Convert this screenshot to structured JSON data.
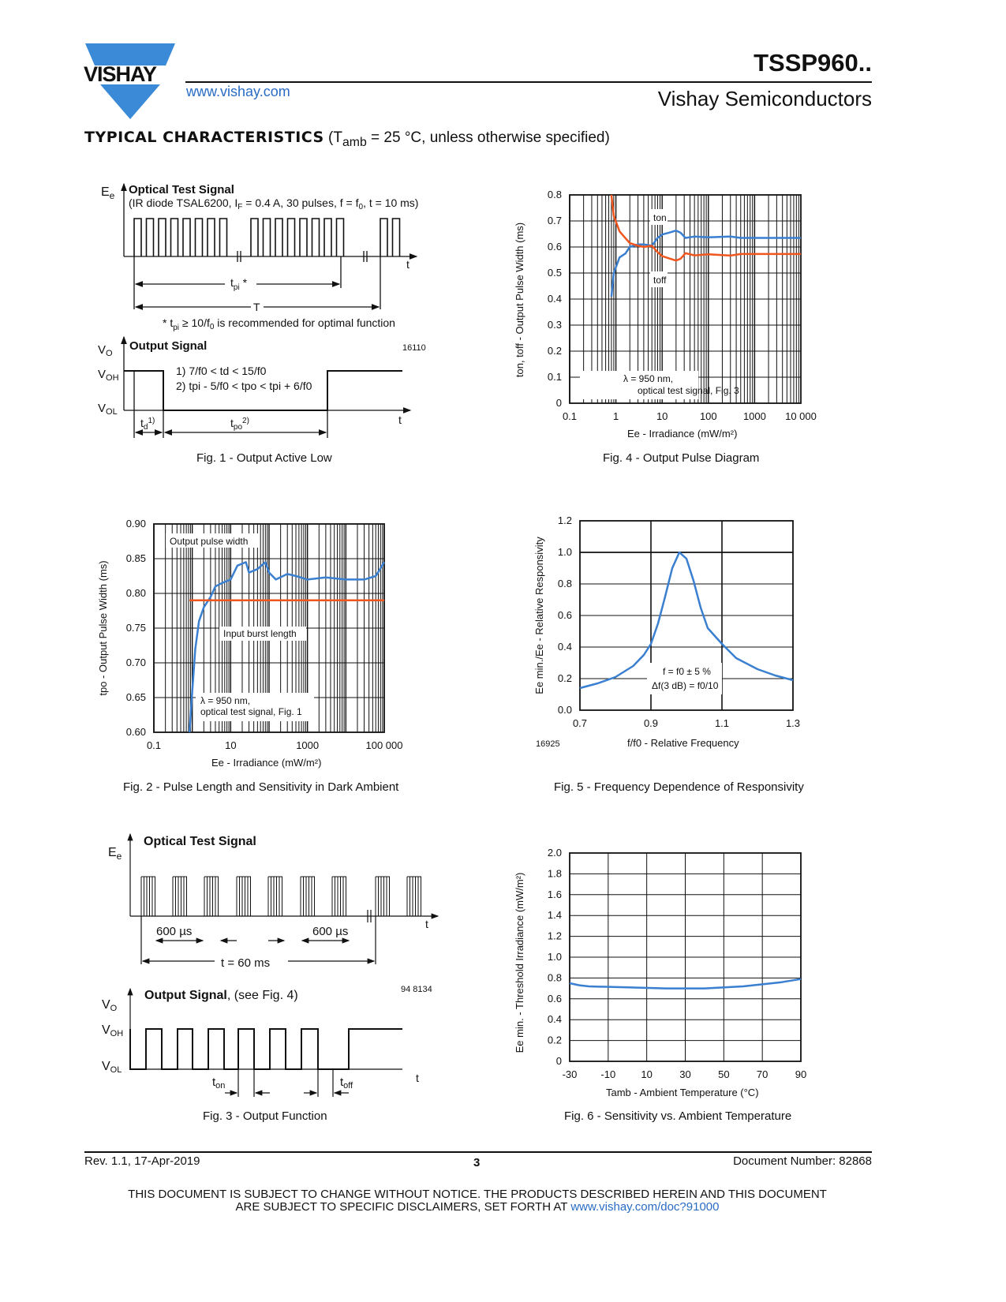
{
  "header": {
    "logo_text": "VISHAY",
    "part_number": "TSSP960..",
    "url": "www.vishay.com",
    "company": "Vishay Semiconductors"
  },
  "section": {
    "title": "TYPICAL CHARACTERISTICS",
    "condition_pre": "(T",
    "condition_sub": "amb",
    "condition_post": " = 25 °C, unless otherwise specified)"
  },
  "fig1": {
    "ee": "E",
    "ee_sub": "e",
    "optical_title": "Optical Test Signal",
    "optical_desc": "(IR diode TSAL6200, I",
    "optical_desc_sub": "F",
    "optical_desc2": " = 0.4 A, 30 pulses, f =  f",
    "optical_desc2_sub": "0",
    "optical_desc3": ", t = 10 ms)",
    "t": "t",
    "tpi": "t",
    "tpi_sub": "pi",
    "tpi_star": " *",
    "T": "T",
    "note": "* t",
    "note_sub": "pi",
    "note2": " ≥ 10/f",
    "note2_sub": "0",
    "note3": " is recommended for optimal function",
    "vo": "V",
    "vo_sub": "O",
    "output_title": "Output Signal",
    "code": "16110",
    "voh": "V",
    "voh_sub": "OH",
    "vol": "V",
    "vol_sub": "OL",
    "cond1": "1) 7/f0 < td < 15/f0",
    "cond2": "2) tpi - 5/f0 < tpo < tpi + 6/f0",
    "td": "t",
    "td_sub": "d",
    "td_sup": "1)",
    "tpo": "t",
    "tpo_sub": "po",
    "tpo_sup": "2)",
    "caption": "Fig. 1 - Output Active Low"
  },
  "fig3": {
    "ee": "E",
    "ee_sub": "e",
    "optical_title": "Optical Test Signal",
    "dur1": "600 µs",
    "dur2": "600 µs",
    "period": "t = 60 ms",
    "t": "t",
    "code": "94 8134",
    "output_title": "Output Signal",
    "output_ref": ", (see Fig. 4)",
    "vo": "V",
    "vo_sub": "O",
    "voh": "V",
    "voh_sub": "OH",
    "vol": "V",
    "vol_sub": "OL",
    "ton": "t",
    "ton_sub": "on",
    "toff": "t",
    "toff_sub": "off",
    "caption": "Fig. 3 - Output Function"
  },
  "chart_data": [
    {
      "id": "fig4",
      "type": "line",
      "title": "Fig. 4 - Output Pulse Diagram",
      "xlabel": "Ee - Irradiance (mW/m²)",
      "ylabel": "ton, toff - Output Pulse Width (ms)",
      "xscale": "log",
      "xlim": [
        0.1,
        10000
      ],
      "ylim": [
        0,
        0.8
      ],
      "xticks": [
        "0.1",
        "1",
        "10",
        "100",
        "1000",
        "10 000"
      ],
      "yticks": [
        "0",
        "0.1",
        "0.2",
        "0.3",
        "0.4",
        "0.5",
        "0.6",
        "0.7",
        "0.8"
      ],
      "annotation": [
        "λ = 950 nm,",
        "optical test signal, Fig. 3"
      ],
      "series": [
        {
          "name": "ton",
          "color": "#3a7fd0",
          "label": "on",
          "x": [
            0.8,
            0.9,
            1.2,
            1.6,
            2,
            3,
            4,
            6,
            8,
            10,
            14,
            20,
            25,
            32,
            50,
            100,
            300,
            500,
            5000,
            10000
          ],
          "y": [
            0.41,
            0.5,
            0.56,
            0.575,
            0.6,
            0.61,
            0.61,
            0.605,
            0.635,
            0.648,
            0.655,
            0.663,
            0.655,
            0.635,
            0.64,
            0.637,
            0.64,
            0.635,
            0.635,
            0.635
          ]
        },
        {
          "name": "toff",
          "color": "#f0561e",
          "label": "off",
          "x": [
            0.8,
            0.9,
            1.2,
            1.5,
            2,
            3,
            4,
            6,
            8,
            10,
            15,
            20,
            25,
            32,
            50,
            100,
            300,
            500,
            10000
          ],
          "y": [
            0.8,
            0.72,
            0.66,
            0.64,
            0.615,
            0.605,
            0.6,
            0.605,
            0.58,
            0.565,
            0.555,
            0.548,
            0.555,
            0.576,
            0.568,
            0.572,
            0.567,
            0.573,
            0.573
          ]
        }
      ]
    },
    {
      "id": "fig2",
      "type": "line",
      "title": "Fig. 2 - Pulse Length and Sensitivity in Dark Ambient",
      "xlabel": "Ee - Irradiance (mW/m²)",
      "ylabel": "tpo - Output Pulse Width (ms)",
      "xscale": "log",
      "xlim": [
        0.1,
        100000
      ],
      "ylim": [
        0.6,
        0.9
      ],
      "xticks": [
        "0.1",
        "10",
        "1000",
        "100 000"
      ],
      "xtick_values": [
        0.1,
        10,
        1000,
        100000
      ],
      "yticks": [
        "0.60",
        "0.65",
        "0.70",
        "0.75",
        "0.80",
        "0.85",
        "0.90"
      ],
      "annotation": [
        "λ = 950 nm,",
        "optical test signal, Fig. 1"
      ],
      "series": [
        {
          "name": "Output pulse width",
          "color": "#3a7fd0",
          "x": [
            0.85,
            1,
            1.2,
            1.5,
            2,
            3,
            4,
            6,
            10,
            15,
            25,
            30,
            50,
            80,
            100,
            150,
            300,
            500,
            1000,
            3000,
            10000,
            30000,
            60000,
            100000
          ],
          "y": [
            0.6,
            0.66,
            0.72,
            0.76,
            0.78,
            0.795,
            0.81,
            0.815,
            0.82,
            0.84,
            0.845,
            0.83,
            0.835,
            0.845,
            0.83,
            0.82,
            0.828,
            0.825,
            0.82,
            0.823,
            0.82,
            0.82,
            0.825,
            0.845
          ]
        },
        {
          "name": "Input burst length",
          "color": "#f0561e",
          "x": [
            0.85,
            100000
          ],
          "y": [
            0.79,
            0.79
          ]
        }
      ]
    },
    {
      "id": "fig5",
      "type": "line",
      "title": "Fig. 5 - Frequency Dependence of Responsivity",
      "xlabel": "f/f0 - Relative Frequency",
      "ylabel": "Ee min./Ee - Relative Responsivity",
      "code": "16925",
      "xlim": [
        0.7,
        1.3
      ],
      "ylim": [
        0,
        1.2
      ],
      "xticks": [
        "0.7",
        "0.9",
        "1.1",
        "1.3"
      ],
      "yticks": [
        "0.0",
        "0.2",
        "0.4",
        "0.6",
        "0.8",
        "1.0",
        "1.2"
      ],
      "annotation": [
        "f = f0 ± 5 %",
        "Δf(3 dB) = f0/10"
      ],
      "series": [
        {
          "name": "Responsivity",
          "color": "#3a7fd0",
          "x": [
            0.7,
            0.75,
            0.8,
            0.85,
            0.88,
            0.9,
            0.92,
            0.94,
            0.96,
            0.98,
            1.0,
            1.02,
            1.04,
            1.06,
            1.1,
            1.14,
            1.2,
            1.25,
            1.3
          ],
          "y": [
            0.14,
            0.17,
            0.21,
            0.28,
            0.35,
            0.42,
            0.55,
            0.72,
            0.9,
            1.0,
            0.96,
            0.82,
            0.65,
            0.52,
            0.42,
            0.33,
            0.26,
            0.22,
            0.19
          ]
        }
      ]
    },
    {
      "id": "fig6",
      "type": "line",
      "title": "Fig. 6 - Sensitivity vs. Ambient Temperature",
      "xlabel": "Tamb - Ambient Temperature (°C)",
      "ylabel": "Ee min. - Threshold Irradiance (mW/m²)",
      "xlim": [
        -30,
        90
      ],
      "ylim": [
        0,
        2.0
      ],
      "xticks": [
        "-30",
        "-10",
        "10",
        "30",
        "50",
        "70",
        "90"
      ],
      "yticks": [
        "0",
        "0.2",
        "0.4",
        "0.6",
        "0.8",
        "1.0",
        "1.2",
        "1.4",
        "1.6",
        "1.8",
        "2.0"
      ],
      "series": [
        {
          "name": "Threshold",
          "color": "#3a7fd0",
          "x": [
            -30,
            -25,
            -20,
            0,
            20,
            40,
            60,
            80,
            90
          ],
          "y": [
            0.75,
            0.73,
            0.72,
            0.71,
            0.7,
            0.7,
            0.72,
            0.76,
            0.79
          ]
        }
      ]
    }
  ],
  "footer": {
    "revision": "Rev. 1.1, 17-Apr-2019",
    "page": "3",
    "document_number": "Document Number: 82868",
    "disclaimer1": "THIS DOCUMENT IS SUBJECT TO CHANGE WITHOUT NOTICE. THE PRODUCTS DESCRIBED HEREIN AND THIS DOCUMENT",
    "disclaimer2": "ARE SUBJECT TO SPECIFIC DISCLAIMERS, SET FORTH AT ",
    "disclaimer_link": "www.vishay.com/doc?91000"
  }
}
